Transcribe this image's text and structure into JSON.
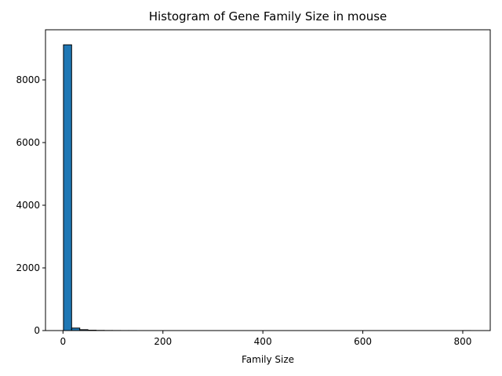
{
  "chart_data": {
    "type": "bar",
    "title": "Histogram of Gene Family Size in mouse",
    "xlabel": "Family Size",
    "ylabel": "",
    "xlim": [
      -35,
      855
    ],
    "ylim": [
      0,
      9600
    ],
    "xticks": [
      0,
      200,
      400,
      600,
      800
    ],
    "yticks": [
      0,
      2000,
      4000,
      6000,
      8000
    ],
    "grid": false,
    "bar_color": "#1f77b4",
    "edge_color": "#000000",
    "bin_width": 16.3,
    "bins_start": 1,
    "values": [
      9120,
      80,
      28,
      12,
      6,
      3,
      2,
      1,
      1,
      0,
      0,
      0,
      0,
      0,
      0,
      0,
      0,
      0,
      0,
      0,
      0,
      0,
      0,
      0,
      0,
      0,
      0,
      0,
      0,
      0,
      0,
      0,
      0,
      0,
      0,
      0,
      0,
      0,
      0,
      0,
      0,
      0,
      0,
      0,
      0,
      0,
      0,
      0,
      0,
      1
    ]
  }
}
